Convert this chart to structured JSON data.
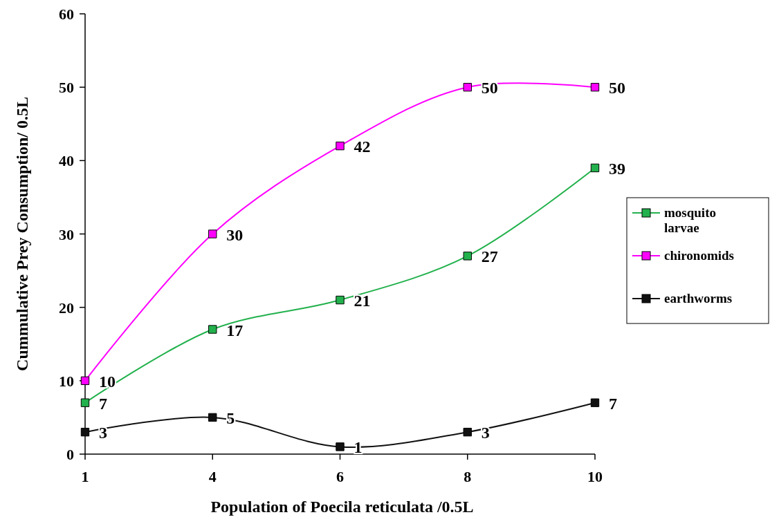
{
  "chart_data": {
    "type": "line",
    "xlabel": "Population of Poecila reticulata /0.5L",
    "ylabel": "Cummulative Prey Consumption/ 0.5L",
    "categories": [
      "1",
      "4",
      "6",
      "8",
      "10"
    ],
    "series": [
      {
        "name": "mosquito larvae",
        "color": "#22b14c",
        "values": [
          7,
          17,
          21,
          27,
          39
        ]
      },
      {
        "name": "chironomids",
        "color": "#ff00ff",
        "values": [
          10,
          30,
          42,
          50,
          50
        ]
      },
      {
        "name": "earthworms",
        "color": "#111111",
        "values": [
          3,
          5,
          1,
          3,
          7
        ]
      }
    ],
    "ylim": [
      0,
      60
    ],
    "yticks": [
      0,
      10,
      20,
      30,
      40,
      50,
      60
    ],
    "data_labels": true,
    "legend": "right",
    "marker": "square",
    "line_style": "solid",
    "grid": false
  }
}
